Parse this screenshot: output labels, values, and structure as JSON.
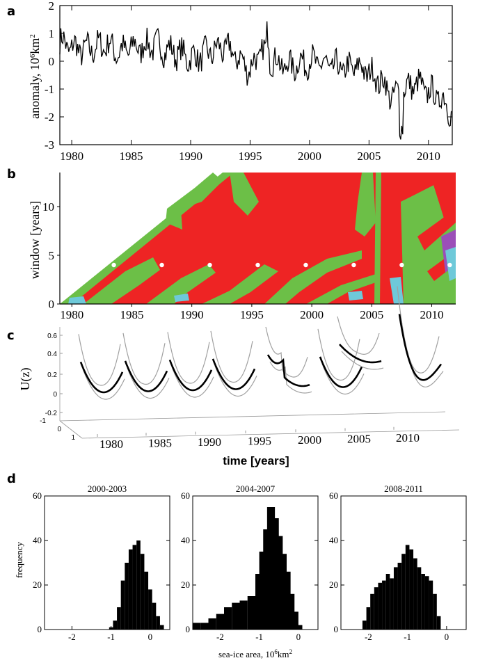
{
  "panels": {
    "a": {
      "label": "a",
      "ylabel": "anomaly, 10",
      "ylabel_exp": "6",
      "ylabel_unit": "km",
      "ylabel_unit_exp": "2",
      "xticks": [
        "1980",
        "1985",
        "1990",
        "1995",
        "2000",
        "2005",
        "2010"
      ],
      "yticks": [
        "2",
        "1",
        "0",
        "-1",
        "-2",
        "-3"
      ]
    },
    "b": {
      "label": "b",
      "ylabel": "window [years]",
      "xticks": [
        "1980",
        "1985",
        "1990",
        "1995",
        "2000",
        "2005",
        "2010"
      ],
      "yticks": [
        "0",
        "5",
        "10"
      ],
      "colors": {
        "red": "#ee2424",
        "green": "#6cbf47",
        "cyan": "#6ec9d9",
        "purple": "#9b4fb8"
      }
    },
    "c": {
      "label": "c",
      "ylabel": "U(z)",
      "xlabel": "time [years]",
      "xticks": [
        "1980",
        "1985",
        "1990",
        "1995",
        "2000",
        "2005",
        "2010"
      ],
      "yticks": [
        "0.6",
        "0.4",
        "0.2",
        "0",
        "-0.2"
      ],
      "zticks": [
        "-1",
        "0",
        "1"
      ]
    },
    "d": {
      "label": "d",
      "ylabel": "frequency",
      "xlabel": "sea-ice area, 10",
      "xlabel_exp": "6",
      "xlabel_unit": "km",
      "xlabel_unit_exp": "2",
      "yticks": [
        "0",
        "20",
        "40",
        "60"
      ],
      "xticks": [
        "-2",
        "-1",
        "0"
      ]
    }
  },
  "chart_data": [
    {
      "type": "line",
      "panel": "a",
      "title": "",
      "xlabel": "",
      "ylabel": "anomaly, 10^6 km^2",
      "xlim": [
        1979,
        2012
      ],
      "ylim": [
        -3,
        2
      ],
      "x": [
        1979,
        1980,
        1981,
        1982,
        1983,
        1984,
        1985,
        1986,
        1987,
        1988,
        1989,
        1990,
        1991,
        1992,
        1993,
        1994,
        1995,
        1996,
        1997,
        1998,
        1999,
        2000,
        2001,
        2002,
        2003,
        2004,
        2005,
        2006,
        2007,
        2008,
        2009,
        2010,
        2011,
        2012
      ],
      "values": [
        0.7,
        0.5,
        0.4,
        0.5,
        0.6,
        0.3,
        0.5,
        0.5,
        0.6,
        0.4,
        0.3,
        0.1,
        0.2,
        0.4,
        0.5,
        0.1,
        -0.3,
        0.4,
        0.0,
        -0.2,
        -0.1,
        0.0,
        -0.1,
        -0.2,
        -0.3,
        -0.2,
        -0.4,
        -0.7,
        -1.3,
        -1.0,
        -0.8,
        -1.1,
        -1.3,
        -1.8
      ]
    },
    {
      "type": "heatmap",
      "panel": "b",
      "xlim": [
        1979,
        2012
      ],
      "ylim": [
        0,
        13.5
      ],
      "markers_x": [
        1983.5,
        1987.5,
        1991.5,
        1995.5,
        1999.5,
        2003.5,
        2007.5,
        2011.5
      ],
      "markers_y": 4
    },
    {
      "type": "line",
      "panel": "c",
      "xlabel": "time [years]",
      "ylabel": "U(z)",
      "windows": [
        "1979-1983",
        "1983-1987",
        "1987-1991",
        "1991-1995",
        "1995-1999",
        "1999-2003",
        "2003-2007",
        "2007-2011"
      ]
    },
    {
      "type": "bar",
      "panel": "d",
      "series": [
        {
          "name": "2000-2003",
          "xlim": [
            -2.7,
            0.5
          ],
          "ylim": [
            0,
            60
          ],
          "x": [
            -1.0,
            -0.9,
            -0.8,
            -0.7,
            -0.6,
            -0.5,
            -0.4,
            -0.3,
            -0.2,
            -0.1,
            0.0,
            0.1,
            0.2,
            0.3
          ],
          "values": [
            1,
            4,
            10,
            22,
            30,
            36,
            38,
            40,
            34,
            26,
            18,
            12,
            6,
            2
          ]
        },
        {
          "name": "2004-2007",
          "xlim": [
            -2.7,
            0.5
          ],
          "ylim": [
            0,
            60
          ],
          "x": [
            -2.6,
            -2.4,
            -2.2,
            -2.0,
            -1.8,
            -1.6,
            -1.4,
            -1.2,
            -1.0,
            -0.9,
            -0.8,
            -0.7,
            -0.6,
            -0.5,
            -0.4,
            -0.3,
            -0.2,
            -0.1,
            0.0
          ],
          "values": [
            3,
            3,
            5,
            7,
            10,
            12,
            13,
            15,
            25,
            35,
            45,
            55,
            50,
            42,
            34,
            26,
            16,
            8,
            2
          ]
        },
        {
          "name": "2008-2011",
          "xlim": [
            -2.7,
            0.5
          ],
          "ylim": [
            0,
            60
          ],
          "x": [
            -2.1,
            -2.0,
            -1.9,
            -1.8,
            -1.7,
            -1.6,
            -1.5,
            -1.4,
            -1.3,
            -1.2,
            -1.1,
            -1.0,
            -0.9,
            -0.8,
            -0.7,
            -0.6,
            -0.5,
            -0.4,
            -0.3,
            -0.2
          ],
          "values": [
            4,
            10,
            16,
            19,
            21,
            22,
            25,
            23,
            28,
            30,
            34,
            38,
            36,
            32,
            28,
            25,
            24,
            22,
            16,
            6
          ]
        }
      ]
    }
  ]
}
